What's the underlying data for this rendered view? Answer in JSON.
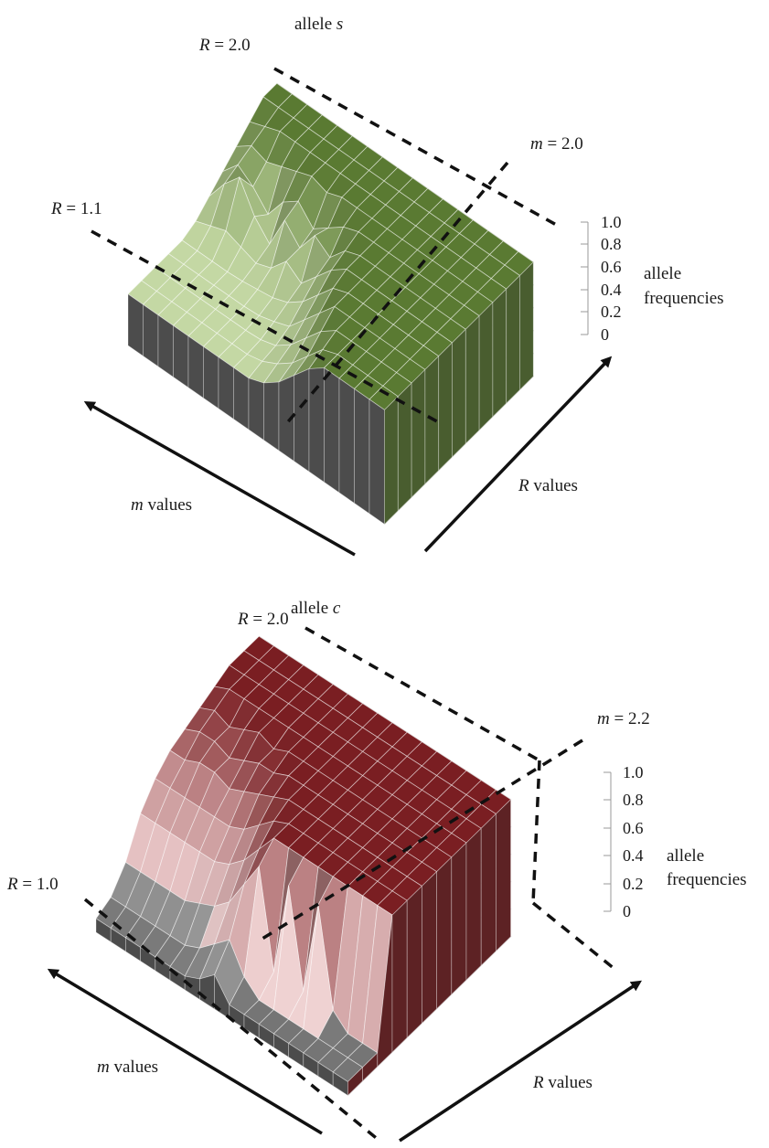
{
  "chart_data": [
    {
      "type": "surface3d",
      "title_prefix": "allele",
      "title_var": "s",
      "x_axis_label_var": "m",
      "x_axis_label_text": "values",
      "y_axis_label_var": "R",
      "y_axis_label_text": "values",
      "z_axis_label_line1": "allele",
      "z_axis_label_line2": "frequencies",
      "z_ticks": [
        "1.0",
        "0.8",
        "0.6",
        "0.4",
        "0.2",
        "0"
      ],
      "zlim": [
        0,
        1
      ],
      "threshold_annotations": [
        {
          "var": "R",
          "text": "= 2.0"
        },
        {
          "var": "R",
          "text": "= 1.1"
        },
        {
          "var": "m",
          "text": "= 2.0"
        }
      ],
      "surface_color": "#5a7a32",
      "surface_light_color": "#d4e6b5",
      "frequencies_grid_note": "rows: increasing R (front to back); cols: increasing m (left to right)",
      "frequencies": [
        [
          0.45,
          0.45,
          0.45,
          0.45,
          0.45,
          0.45,
          0.45,
          0.45,
          0.45,
          0.5,
          0.6,
          0.75,
          0.9,
          1.0,
          1.0,
          1.0,
          1.0,
          1.0
        ],
        [
          0.45,
          0.45,
          0.45,
          0.45,
          0.45,
          0.45,
          0.45,
          0.45,
          0.48,
          0.55,
          0.65,
          0.8,
          0.95,
          1.0,
          1.0,
          1.0,
          1.0,
          1.0
        ],
        [
          0.45,
          0.45,
          0.45,
          0.45,
          0.45,
          0.45,
          0.45,
          0.46,
          0.5,
          0.6,
          0.75,
          0.9,
          1.0,
          1.0,
          1.0,
          1.0,
          1.0,
          1.0
        ],
        [
          0.45,
          0.45,
          0.45,
          0.45,
          0.45,
          0.45,
          0.46,
          0.5,
          0.55,
          0.7,
          0.85,
          1.0,
          1.0,
          1.0,
          1.0,
          1.0,
          1.0,
          1.0
        ],
        [
          0.45,
          0.45,
          0.45,
          0.45,
          0.46,
          0.48,
          0.5,
          0.55,
          0.65,
          0.8,
          0.95,
          1.0,
          1.0,
          1.0,
          1.0,
          1.0,
          1.0,
          1.0
        ],
        [
          0.5,
          0.55,
          0.6,
          0.55,
          0.5,
          0.55,
          0.7,
          0.6,
          0.75,
          0.9,
          1.0,
          1.0,
          1.0,
          1.0,
          1.0,
          1.0,
          1.0,
          1.0
        ],
        [
          0.6,
          0.8,
          0.95,
          0.7,
          0.55,
          0.85,
          0.7,
          0.9,
          0.8,
          0.95,
          1.0,
          1.0,
          1.0,
          1.0,
          1.0,
          1.0,
          1.0,
          1.0
        ],
        [
          0.7,
          0.85,
          0.75,
          0.6,
          0.8,
          0.9,
          0.75,
          0.85,
          0.95,
          1.0,
          1.0,
          1.0,
          1.0,
          1.0,
          1.0,
          1.0,
          1.0,
          1.0
        ],
        [
          0.8,
          0.9,
          0.85,
          0.9,
          0.95,
          1.0,
          0.95,
          1.0,
          1.0,
          1.0,
          1.0,
          1.0,
          1.0,
          1.0,
          1.0,
          1.0,
          1.0,
          1.0
        ],
        [
          0.9,
          0.95,
          1.0,
          1.0,
          1.0,
          1.0,
          1.0,
          1.0,
          1.0,
          1.0,
          1.0,
          1.0,
          1.0,
          1.0,
          1.0,
          1.0,
          1.0,
          1.0
        ],
        [
          1.0,
          1.0,
          1.0,
          1.0,
          1.0,
          1.0,
          1.0,
          1.0,
          1.0,
          1.0,
          1.0,
          1.0,
          1.0,
          1.0,
          1.0,
          1.0,
          1.0,
          1.0
        ],
        [
          1.0,
          1.0,
          1.0,
          1.0,
          1.0,
          1.0,
          1.0,
          1.0,
          1.0,
          1.0,
          1.0,
          1.0,
          1.0,
          1.0,
          1.0,
          1.0,
          1.0,
          1.0
        ]
      ]
    },
    {
      "type": "surface3d",
      "title_prefix": "allele",
      "title_var": "c",
      "x_axis_label_var": "m",
      "x_axis_label_text": "values",
      "y_axis_label_var": "R",
      "y_axis_label_text": "values",
      "z_axis_label_line1": "allele",
      "z_axis_label_line2": "frequencies",
      "z_ticks": [
        "1.0",
        "0.8",
        "0.6",
        "0.4",
        "0.2",
        "0"
      ],
      "zlim": [
        0,
        1
      ],
      "threshold_annotations": [
        {
          "var": "R",
          "text": "= 2.0"
        },
        {
          "var": "R",
          "text": "= 1.0"
        },
        {
          "var": "m",
          "text": "= 2.2"
        }
      ],
      "surface_color": "#7a1e22",
      "surface_light_color": "#f2d6d6",
      "frequencies_grid_note": "rows: increasing R (front to back); cols: increasing m (left to right)",
      "frequencies": [
        [
          0.1,
          0.1,
          0.1,
          0.1,
          0.1,
          0.1,
          0.1,
          0.15,
          0.25,
          0.1,
          0.1,
          0.1,
          0.1,
          0.1,
          0.1,
          0.1,
          0.1,
          0.1
        ],
        [
          0.15,
          0.15,
          0.15,
          0.15,
          0.15,
          0.15,
          0.2,
          0.3,
          0.4,
          0.2,
          0.1,
          0.1,
          0.1,
          0.1,
          0.1,
          0.1,
          0.1,
          0.1
        ],
        [
          0.3,
          0.3,
          0.3,
          0.3,
          0.3,
          0.35,
          0.4,
          0.5,
          0.7,
          0.9,
          0.2,
          0.9,
          0.2,
          0.9,
          0.2,
          0.1,
          0.1,
          0.1
        ],
        [
          0.55,
          0.55,
          0.55,
          0.55,
          0.55,
          0.55,
          0.6,
          0.7,
          0.85,
          1.0,
          1.0,
          1.0,
          1.0,
          1.0,
          1.0,
          1.0,
          1.0,
          1.0
        ],
        [
          0.7,
          0.7,
          0.7,
          0.7,
          0.7,
          0.7,
          0.75,
          0.85,
          0.95,
          1.0,
          1.0,
          1.0,
          1.0,
          1.0,
          1.0,
          1.0,
          1.0,
          1.0
        ],
        [
          0.8,
          0.8,
          0.85,
          0.85,
          0.8,
          0.85,
          0.9,
          0.95,
          1.0,
          1.0,
          1.0,
          1.0,
          1.0,
          1.0,
          1.0,
          1.0,
          1.0,
          1.0
        ],
        [
          0.85,
          0.9,
          0.9,
          0.85,
          0.9,
          0.95,
          0.95,
          1.0,
          1.0,
          1.0,
          1.0,
          1.0,
          1.0,
          1.0,
          1.0,
          1.0,
          1.0,
          1.0
        ],
        [
          0.9,
          0.95,
          0.9,
          0.95,
          1.0,
          0.95,
          1.0,
          1.0,
          1.0,
          1.0,
          1.0,
          1.0,
          1.0,
          1.0,
          1.0,
          1.0,
          1.0,
          1.0
        ],
        [
          0.95,
          1.0,
          1.0,
          1.0,
          1.0,
          1.0,
          1.0,
          1.0,
          1.0,
          1.0,
          1.0,
          1.0,
          1.0,
          1.0,
          1.0,
          1.0,
          1.0,
          1.0
        ],
        [
          1.0,
          1.0,
          1.0,
          1.0,
          1.0,
          1.0,
          1.0,
          1.0,
          1.0,
          1.0,
          1.0,
          1.0,
          1.0,
          1.0,
          1.0,
          1.0,
          1.0,
          1.0
        ],
        [
          1.0,
          1.0,
          1.0,
          1.0,
          1.0,
          1.0,
          1.0,
          1.0,
          1.0,
          1.0,
          1.0,
          1.0,
          1.0,
          1.0,
          1.0,
          1.0,
          1.0,
          1.0
        ],
        [
          1.0,
          1.0,
          1.0,
          1.0,
          1.0,
          1.0,
          1.0,
          1.0,
          1.0,
          1.0,
          1.0,
          1.0,
          1.0,
          1.0,
          1.0,
          1.0,
          1.0,
          1.0
        ]
      ]
    }
  ]
}
